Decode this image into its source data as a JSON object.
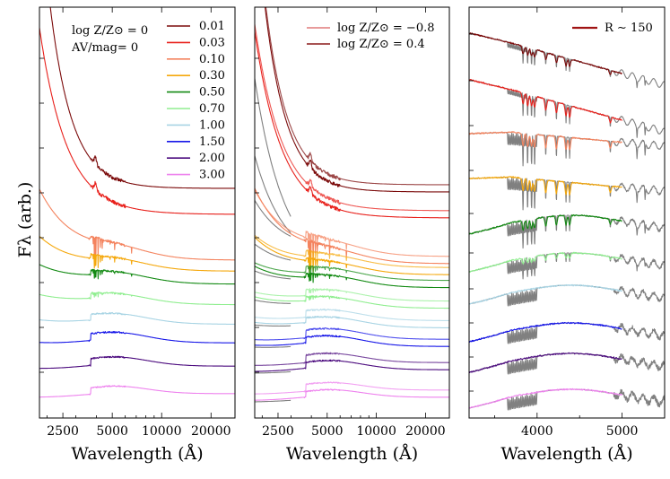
{
  "chart_data": [
    {
      "type": "line",
      "panel": "left",
      "title": "",
      "ylabel": "Fλ (arb.)",
      "xlabel": "Wavelength (Å)",
      "xscale": "log",
      "xlim": [
        1800,
        28000
      ],
      "xticks": [
        2500,
        5000,
        10000,
        20000
      ],
      "xtick_labels": [
        "2500",
        "5000",
        "10000",
        "20000"
      ],
      "annotations": [
        "log Z/Z⊙ = 0",
        "AV/mag= 0"
      ],
      "legend_location": "upper-right",
      "series": [
        {
          "name": "0.01",
          "color": "#7b0a0a"
        },
        {
          "name": "0.03",
          "color": "#e8201b"
        },
        {
          "name": "0.10",
          "color": "#f4835e"
        },
        {
          "name": "0.30",
          "color": "#f5a80c"
        },
        {
          "name": "0.50",
          "color": "#138a13"
        },
        {
          "name": "0.70",
          "color": "#90ee90"
        },
        {
          "name": "1.00",
          "color": "#a8d4e4"
        },
        {
          "name": "1.50",
          "color": "#1616e8"
        },
        {
          "name": "2.00",
          "color": "#4b0a7e"
        },
        {
          "name": "3.00",
          "color": "#ee82ee"
        }
      ]
    },
    {
      "type": "line",
      "panel": "middle",
      "xlabel": "Wavelength (Å)",
      "xscale": "log",
      "xlim": [
        1800,
        28000
      ],
      "xticks": [
        2500,
        5000,
        10000,
        20000
      ],
      "xtick_labels": [
        "2500",
        "5000",
        "10000",
        "20000"
      ],
      "legend_location": "upper-right",
      "legend": [
        {
          "name": "log Z/Z⊙ = −0.8",
          "color": "#e07a7a"
        },
        {
          "name": "log Z/Z⊙ = 0.4",
          "color": "#8b1a1a"
        }
      ]
    },
    {
      "type": "line",
      "panel": "right",
      "xlabel": "Wavelength (Å)",
      "xscale": "linear",
      "xlim": [
        3200,
        5500
      ],
      "xticks": [
        4000,
        5000
      ],
      "xtick_labels": [
        "4000",
        "5000"
      ],
      "legend_location": "upper-right",
      "legend": [
        {
          "name": "R ∼ 150",
          "color": "#a01414"
        }
      ]
    }
  ]
}
